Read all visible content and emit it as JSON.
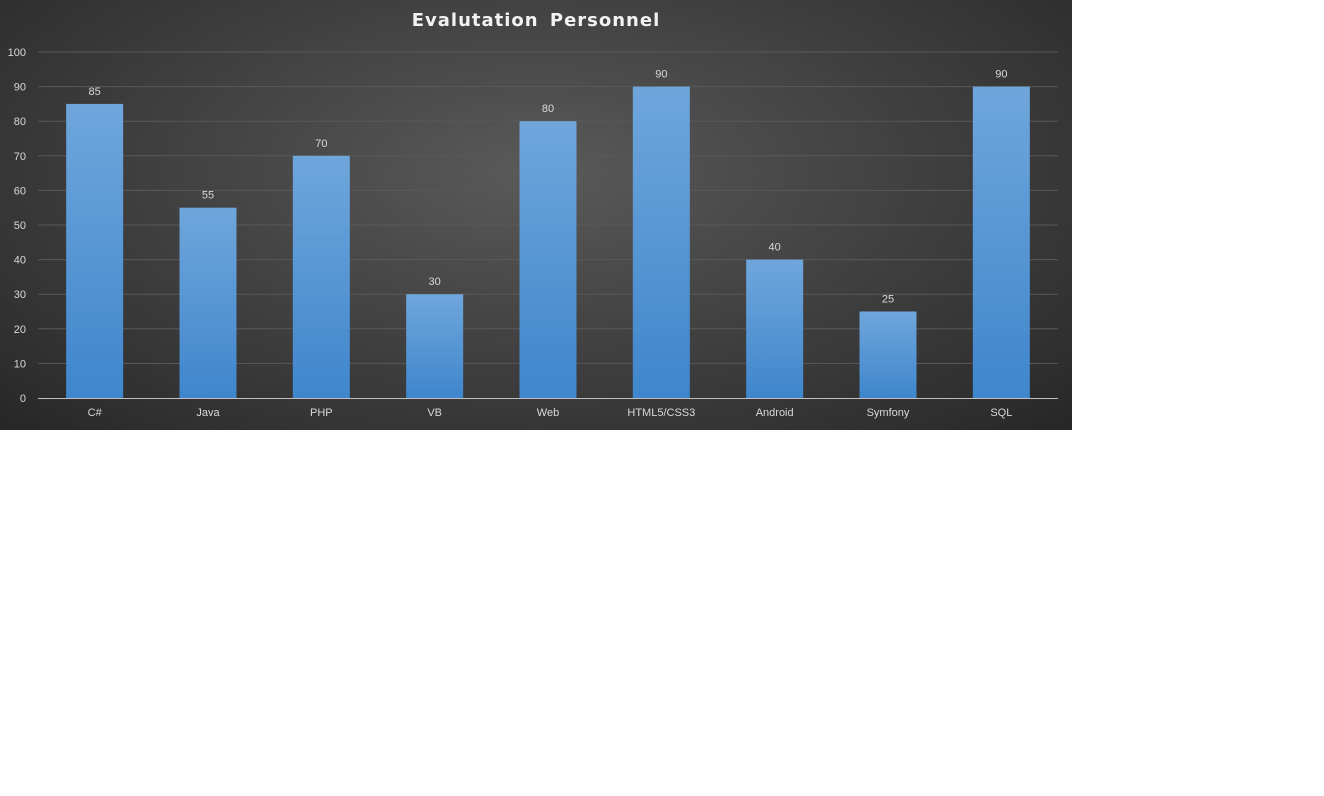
{
  "chart_data": {
    "type": "bar",
    "title": "Evalutation  Personnel",
    "xlabel": "",
    "ylabel": "",
    "categories": [
      "C#",
      "Java",
      "PHP",
      "VB",
      "Web",
      "HTML5/CSS3",
      "Android",
      "Symfony",
      "SQL"
    ],
    "values": [
      85,
      55,
      70,
      30,
      80,
      90,
      40,
      25,
      90
    ],
    "ylim": [
      0,
      100
    ],
    "yticks": [
      "0",
      "10",
      "20",
      "30",
      "40",
      "50",
      "60",
      "70",
      "80",
      "90",
      "100"
    ],
    "grid": true,
    "legend": "none",
    "data_labels": true,
    "colors": {
      "bar_top": "#6fa6dc",
      "bar_bottom": "#3f86cc",
      "background_center": "#5a5a5a",
      "background_edge": "#262626",
      "gridline": "#595959",
      "text": "#d9d9d9"
    }
  }
}
